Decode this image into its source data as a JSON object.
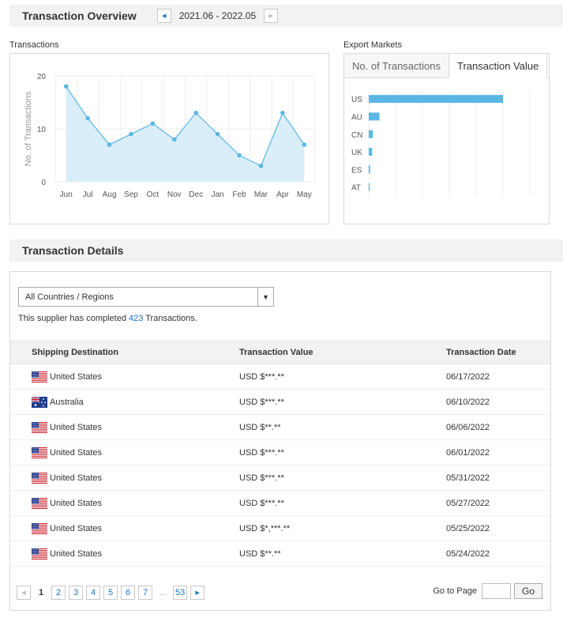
{
  "overview": {
    "title": "Transaction Overview",
    "date_range": "2021.06 - 2022.05"
  },
  "transactions_panel": {
    "label": "Transactions"
  },
  "export_panel": {
    "label": "Export Markets",
    "tabs": [
      {
        "label": "No. of Transactions",
        "active": false
      },
      {
        "label": "Transaction Value",
        "active": true
      }
    ]
  },
  "chart_data": [
    {
      "type": "area",
      "title": "",
      "xlabel": "",
      "ylabel": "No. of Transactions",
      "categories": [
        "Jun",
        "Jul",
        "Aug",
        "Sep",
        "Oct",
        "Nov",
        "Dec",
        "Jan",
        "Feb",
        "Mar",
        "Apr",
        "May"
      ],
      "values": [
        18,
        12,
        7,
        9,
        11,
        8,
        13,
        9,
        5,
        3,
        13,
        7
      ],
      "ylim": [
        0,
        20
      ],
      "yticks": [
        0,
        10,
        20
      ],
      "grid": true,
      "color": "#5ab7e3"
    },
    {
      "type": "bar",
      "orientation": "horizontal",
      "categories": [
        "US",
        "AU",
        "CN",
        "UK",
        "ES",
        "AT"
      ],
      "values": [
        100,
        8,
        3,
        2.5,
        1,
        0.5
      ],
      "xlim": [
        0,
        120
      ],
      "grid": true,
      "color": "#5ab7e3"
    }
  ],
  "details": {
    "title": "Transaction Details",
    "filter": "All Countries / Regions",
    "summary_prefix": "This supplier has completed ",
    "summary_count": "423",
    "summary_suffix": " Transactions.",
    "columns": [
      "Shipping Destination",
      "Transaction Value",
      "Transaction Date"
    ],
    "rows": [
      {
        "flag": "us-flag-icon",
        "destination": "United States",
        "value": "USD $***.**",
        "date": "06/17/2022"
      },
      {
        "flag": "au-flag-icon",
        "destination": "Australia",
        "value": "USD $***.**",
        "date": "06/10/2022"
      },
      {
        "flag": "us-flag-icon",
        "destination": "United States",
        "value": "USD $**.**",
        "date": "06/06/2022"
      },
      {
        "flag": "us-flag-icon",
        "destination": "United States",
        "value": "USD $***.**",
        "date": "06/01/2022"
      },
      {
        "flag": "us-flag-icon",
        "destination": "United States",
        "value": "USD $***.**",
        "date": "05/31/2022"
      },
      {
        "flag": "us-flag-icon",
        "destination": "United States",
        "value": "USD $***.**",
        "date": "05/27/2022"
      },
      {
        "flag": "us-flag-icon",
        "destination": "United States",
        "value": "USD $*,***.**",
        "date": "05/25/2022"
      },
      {
        "flag": "us-flag-icon",
        "destination": "United States",
        "value": "USD $**.**",
        "date": "05/24/2022"
      }
    ]
  },
  "pagination": {
    "current": "1",
    "pages": [
      "2",
      "3",
      "4",
      "5",
      "6",
      "7"
    ],
    "ellipsis": "...",
    "last": "53",
    "goto_label": "Go to Page",
    "goto_button": "Go"
  },
  "colors": {
    "accent": "#1a73c9",
    "chart": "#5ab7e3",
    "chart_fill": "#d9eef9"
  }
}
